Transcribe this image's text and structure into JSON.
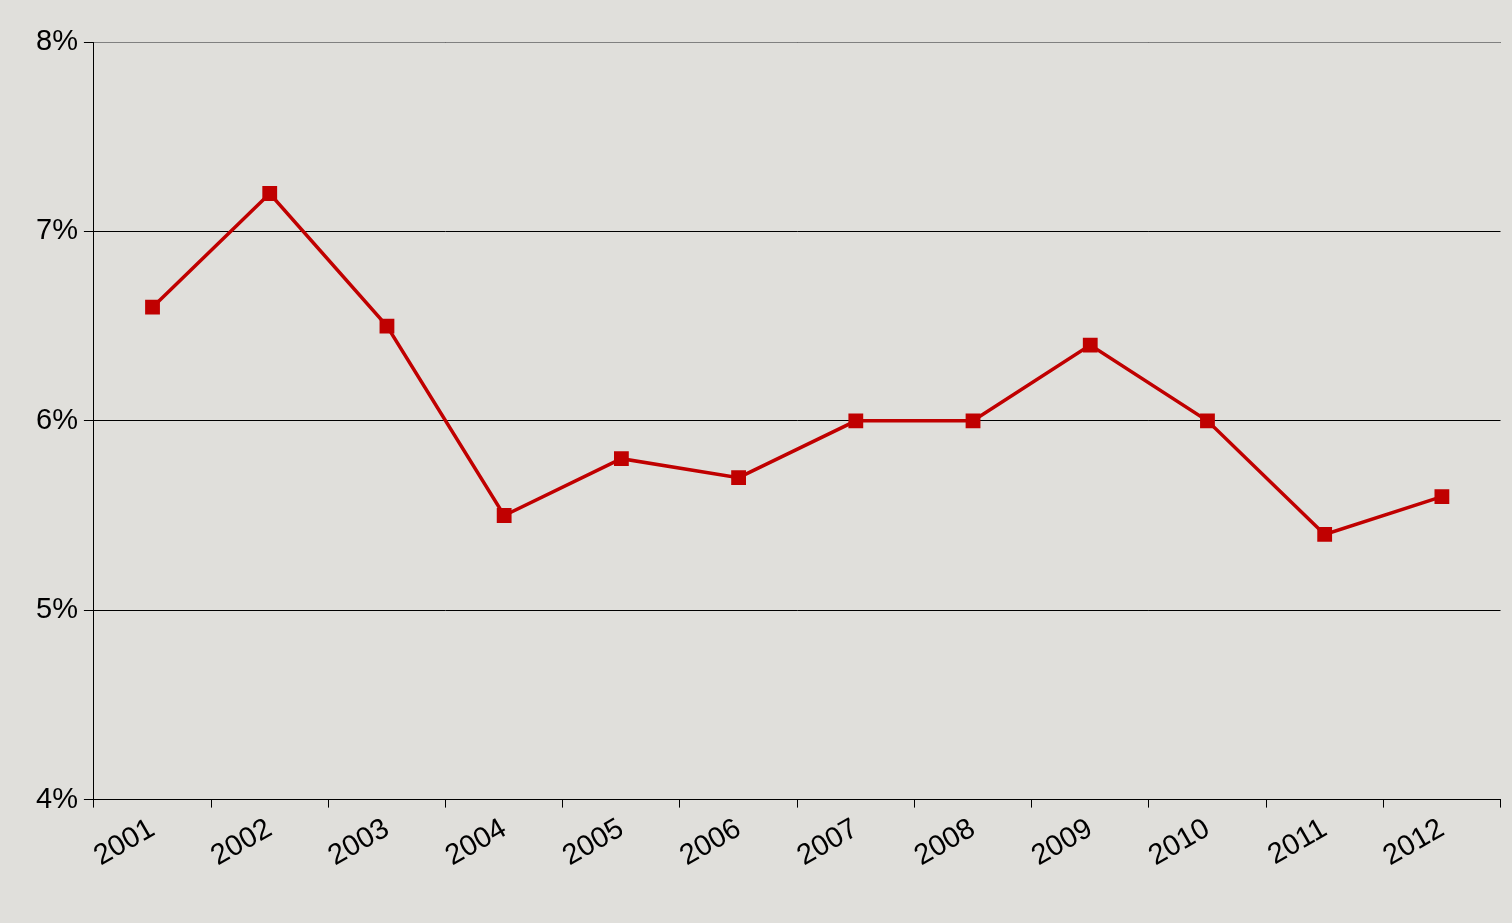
{
  "chart_data": {
    "type": "line",
    "categories": [
      "2001",
      "2002",
      "2003",
      "2004",
      "2005",
      "2006",
      "2007",
      "2008",
      "2009",
      "2010",
      "2011",
      "2012"
    ],
    "values": [
      6.6,
      7.2,
      6.5,
      5.5,
      5.8,
      5.7,
      6.0,
      6.0,
      6.4,
      6.0,
      5.4,
      5.6
    ],
    "color": "#c00000",
    "marker": "square",
    "ylim": [
      4,
      8
    ],
    "yticks": [
      {
        "value": 4,
        "label": "4%"
      },
      {
        "value": 5,
        "label": "5%"
      },
      {
        "value": 6,
        "label": "6%"
      },
      {
        "value": 7,
        "label": "7%"
      },
      {
        "value": 8,
        "label": "8%"
      }
    ],
    "grid": true
  }
}
